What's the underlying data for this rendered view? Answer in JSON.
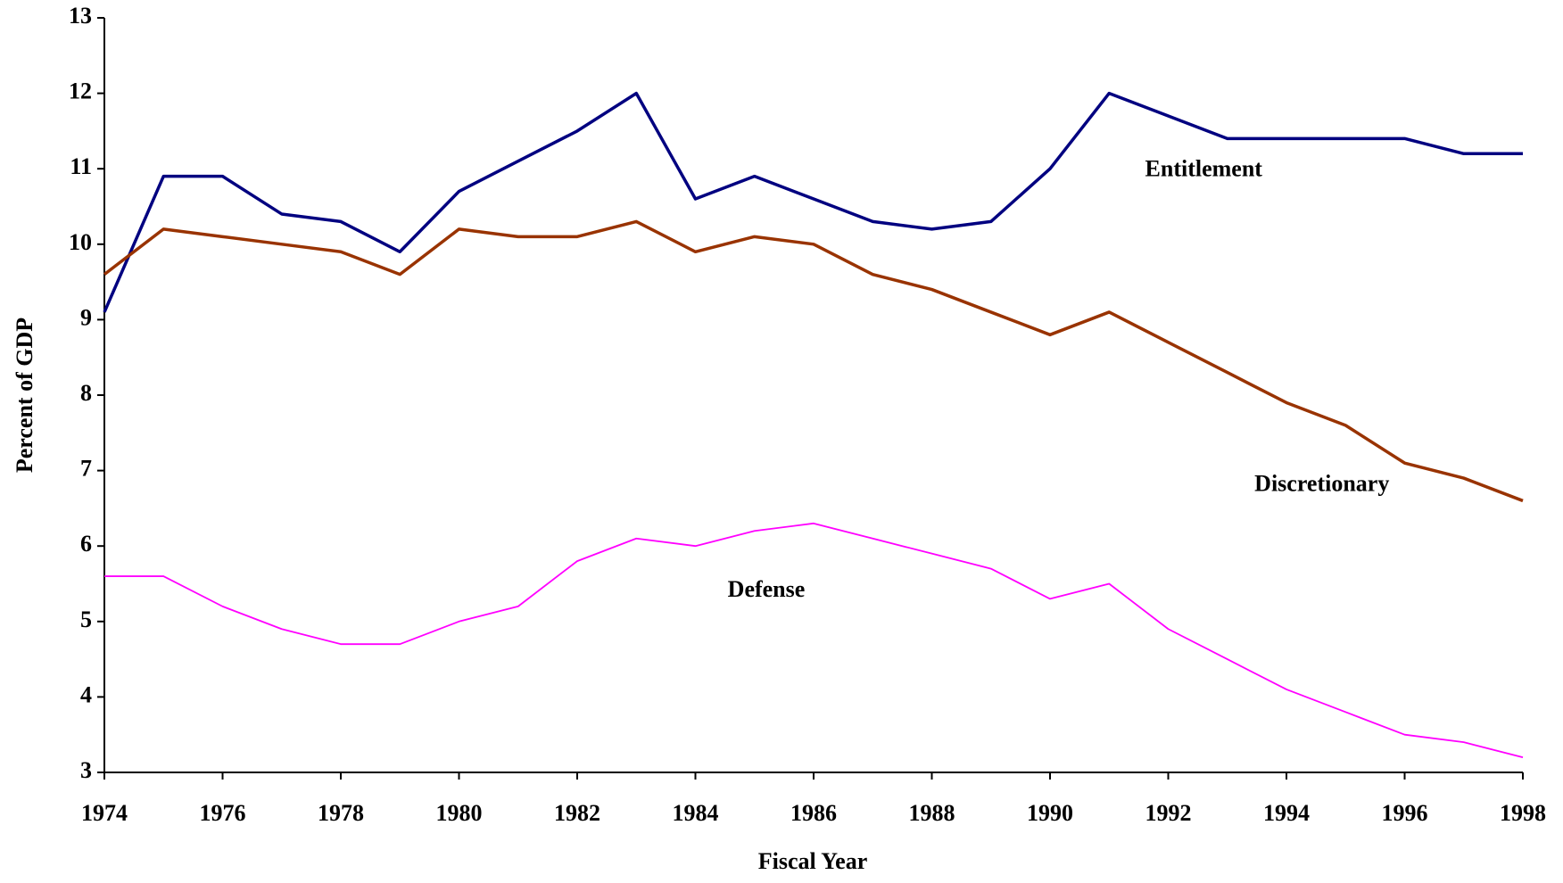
{
  "chart_data": {
    "type": "line",
    "x_label": "Fiscal Year",
    "y_label": "Percent of GDP",
    "x": [
      1974,
      1975,
      1976,
      1977,
      1978,
      1979,
      1980,
      1981,
      1982,
      1983,
      1984,
      1985,
      1986,
      1987,
      1988,
      1989,
      1990,
      1991,
      1992,
      1993,
      1994,
      1995,
      1996,
      1997,
      1998
    ],
    "series": [
      {
        "name": "Entitlement",
        "color": "#000080",
        "values": [
          9.1,
          10.9,
          10.9,
          10.4,
          10.3,
          9.9,
          10.7,
          11.1,
          11.5,
          12.0,
          10.6,
          10.9,
          10.6,
          10.3,
          10.2,
          10.3,
          11.0,
          12.0,
          11.7,
          11.4,
          11.4,
          11.4,
          11.4,
          11.2,
          11.2
        ]
      },
      {
        "name": "Discretionary",
        "color": "#993300",
        "values": [
          9.6,
          10.2,
          10.1,
          10.0,
          9.9,
          9.6,
          10.2,
          10.1,
          10.1,
          10.3,
          9.9,
          10.1,
          10.0,
          9.6,
          9.4,
          9.1,
          8.8,
          9.1,
          8.7,
          8.3,
          7.9,
          7.6,
          7.1,
          6.9,
          6.6
        ]
      },
      {
        "name": "Defense",
        "color": "#ff00ff",
        "values": [
          5.6,
          5.6,
          5.2,
          4.9,
          4.7,
          4.7,
          5.0,
          5.2,
          5.8,
          6.1,
          6.0,
          6.2,
          6.3,
          6.1,
          5.9,
          5.7,
          5.3,
          5.5,
          4.9,
          4.5,
          4.1,
          3.8,
          3.5,
          3.4,
          3.2
        ]
      }
    ],
    "xlim": [
      1974,
      1998
    ],
    "xticks": [
      1974,
      1976,
      1978,
      1980,
      1982,
      1984,
      1986,
      1988,
      1990,
      1992,
      1994,
      1996,
      1998
    ],
    "ylim": [
      3,
      13
    ],
    "yticks": [
      3,
      4,
      5,
      6,
      7,
      8,
      9,
      10,
      11,
      12,
      13
    ],
    "grid": false
  }
}
